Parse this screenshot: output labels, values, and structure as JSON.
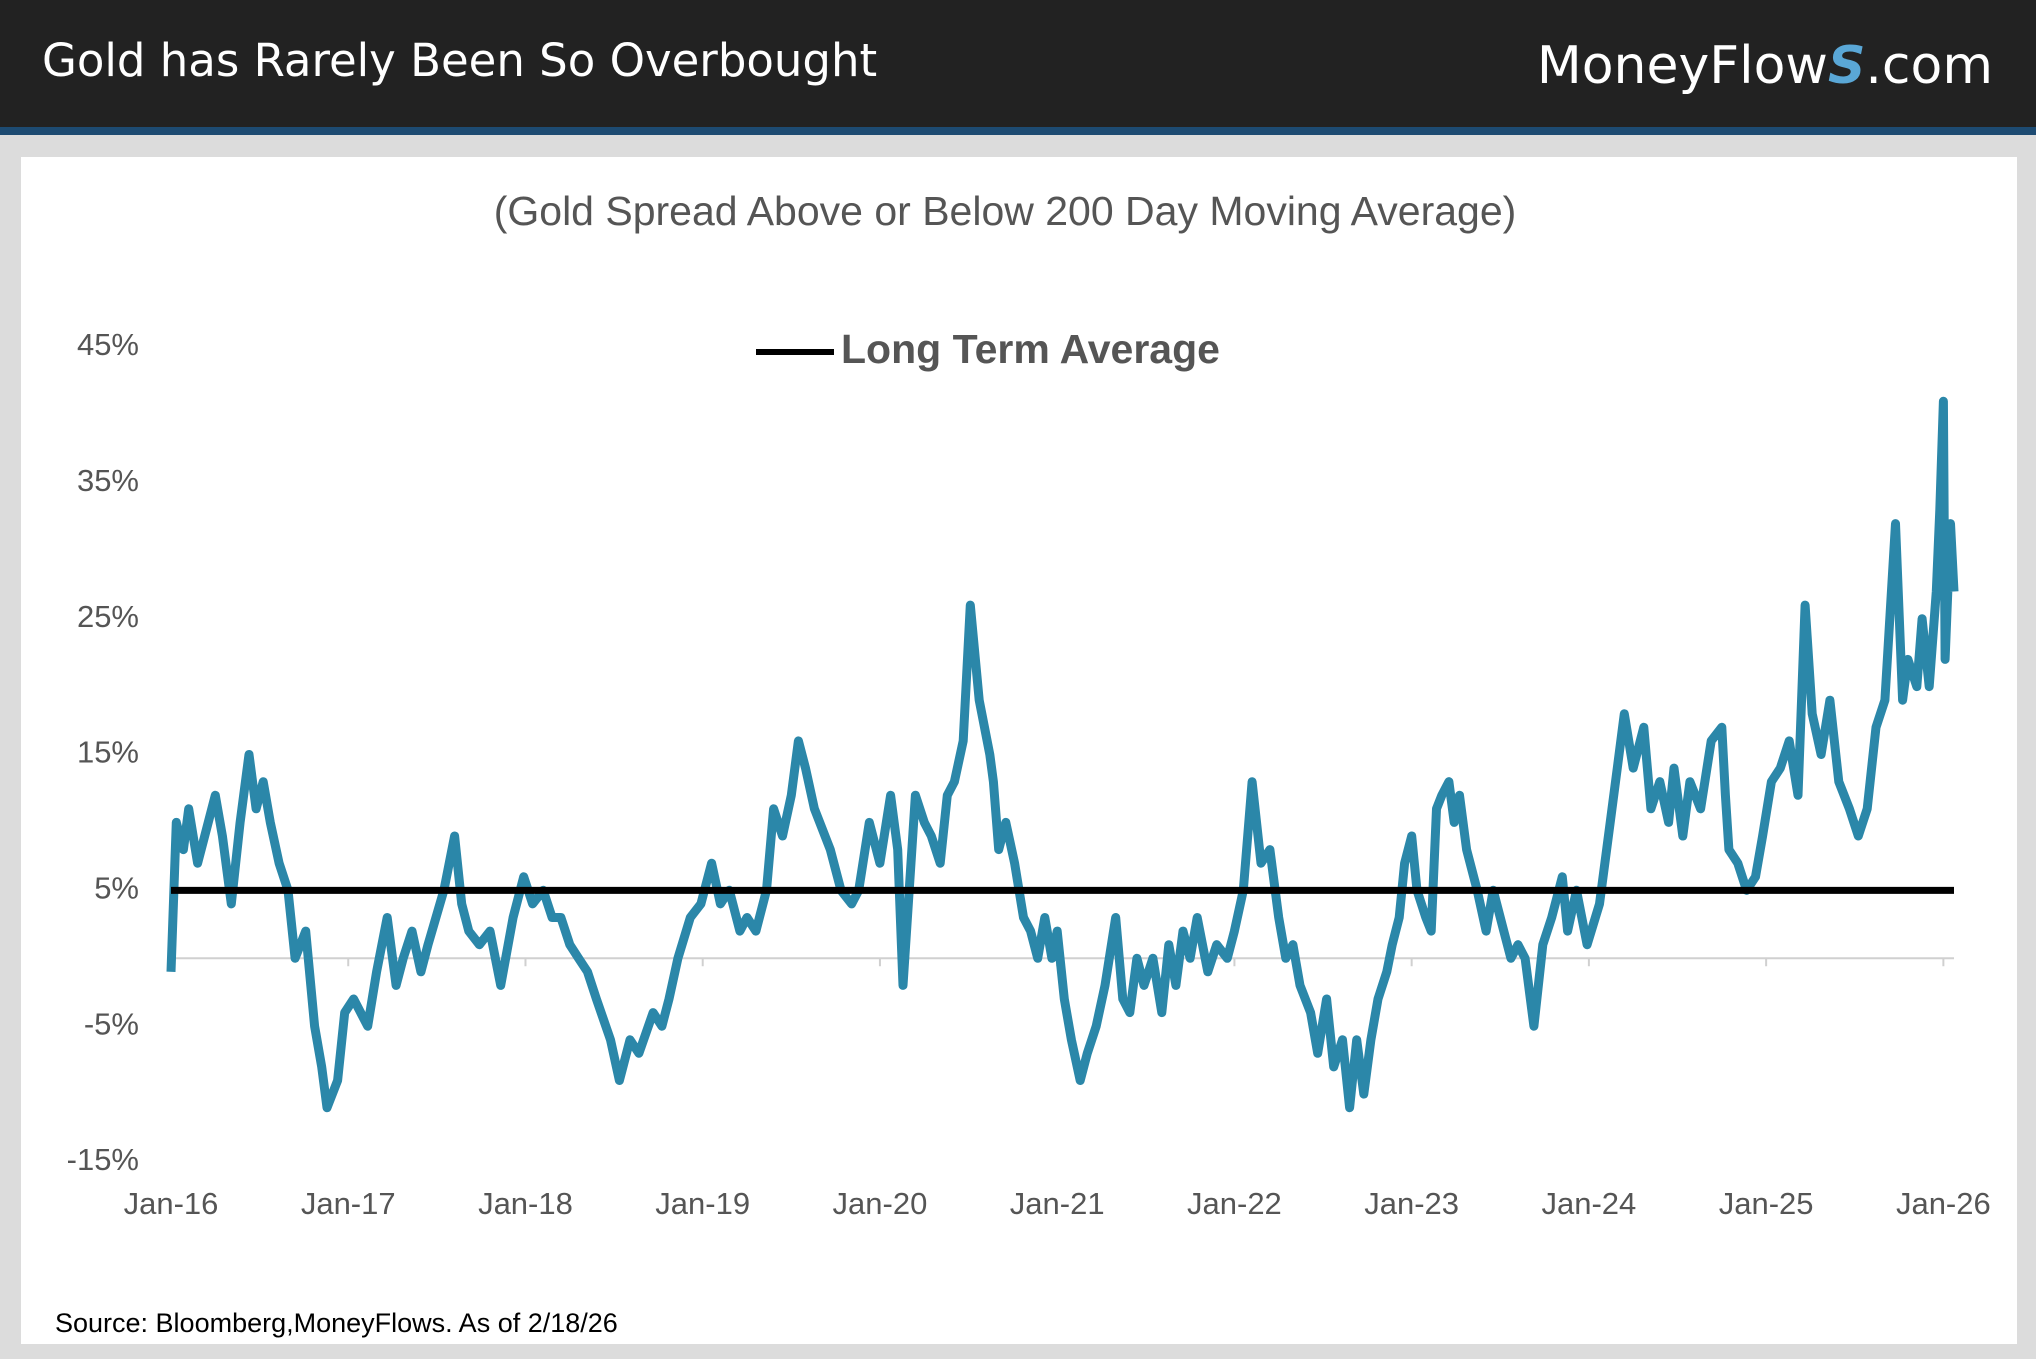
{
  "header": {
    "title": "Gold has Rarely Been So Overbought",
    "logo": {
      "text": "MoneyFlow",
      "mark": "S",
      "suffix": ".com"
    }
  },
  "chart_data": {
    "type": "line",
    "subtitle": "(Gold Spread Above or Below 200 Day Moving Average)",
    "x": [
      2016.0,
      2016.03,
      2016.07,
      2016.1,
      2016.15,
      2016.19,
      2016.25,
      2016.29,
      2016.34,
      2016.39,
      2016.44,
      2016.48,
      2016.52,
      2016.56,
      2016.61,
      2016.66,
      2016.7,
      2016.76,
      2016.81,
      2016.85,
      2016.88,
      2016.94,
      2016.98,
      2017.03,
      2017.11,
      2017.16,
      2017.22,
      2017.27,
      2017.31,
      2017.36,
      2017.41,
      2017.45,
      2017.54,
      2017.6,
      2017.64,
      2017.68,
      2017.74,
      2017.8,
      2017.86,
      2017.93,
      2017.99,
      2018.04,
      2018.1,
      2018.15,
      2018.2,
      2018.25,
      2018.3,
      2018.35,
      2018.4,
      2018.48,
      2018.53,
      2018.59,
      2018.64,
      2018.72,
      2018.77,
      2018.81,
      2018.86,
      2018.93,
      2018.99,
      2019.05,
      2019.1,
      2019.15,
      2019.21,
      2019.25,
      2019.3,
      2019.36,
      2019.4,
      2019.45,
      2019.5,
      2019.54,
      2019.58,
      2019.63,
      2019.72,
      2019.78,
      2019.84,
      2019.88,
      2019.94,
      2020.0,
      2020.06,
      2020.1,
      2020.13,
      2020.2,
      2020.25,
      2020.29,
      2020.34,
      2020.38,
      2020.42,
      2020.47,
      2020.51,
      2020.56,
      2020.62,
      2020.64,
      2020.67,
      2020.71,
      2020.76,
      2020.81,
      2020.85,
      2020.89,
      2020.93,
      2020.97,
      2021.0,
      2021.04,
      2021.08,
      2021.13,
      2021.17,
      2021.22,
      2021.27,
      2021.33,
      2021.37,
      2021.41,
      2021.45,
      2021.49,
      2021.54,
      2021.59,
      2021.63,
      2021.67,
      2021.71,
      2021.75,
      2021.79,
      2021.85,
      2021.9,
      2021.96,
      2022.0,
      2022.05,
      2022.1,
      2022.15,
      2022.2,
      2022.25,
      2022.29,
      2022.33,
      2022.37,
      2022.43,
      2022.47,
      2022.52,
      2022.56,
      2022.61,
      2022.65,
      2022.69,
      2022.73,
      2022.77,
      2022.81,
      2022.86,
      2022.89,
      2022.93,
      2022.96,
      2023.0,
      2023.03,
      2023.08,
      2023.11,
      2023.14,
      2023.17,
      2023.21,
      2023.24,
      2023.27,
      2023.31,
      2023.37,
      2023.42,
      2023.46,
      2023.52,
      2023.56,
      2023.6,
      2023.64,
      2023.69,
      2023.74,
      2023.79,
      2023.85,
      2023.88,
      2023.93,
      2023.99,
      2024.06,
      2024.12,
      2024.16,
      2024.2,
      2024.25,
      2024.31,
      2024.35,
      2024.4,
      2024.45,
      2024.48,
      2024.53,
      2024.57,
      2024.63,
      2024.69,
      2024.75,
      2024.77,
      2024.79,
      2024.84,
      2024.89,
      2024.94,
      2024.98,
      2025.03,
      2025.08,
      2025.13,
      2025.18,
      2025.22,
      2025.26,
      2025.31,
      2025.36,
      2025.41,
      2025.47,
      2025.52,
      2025.57,
      2025.62,
      2025.67,
      2025.73,
      2025.77,
      2025.8,
      2025.85,
      2025.88,
      2025.92,
      2025.96,
      2025.98,
      2026.0,
      2026.01,
      2026.04,
      2026.06
    ],
    "series": [
      {
        "color": "#2b87a9",
        "values": [
          -1,
          10,
          8,
          11,
          7,
          9,
          12,
          9,
          4,
          10,
          15,
          11,
          13,
          10,
          7,
          5,
          0,
          2,
          -5,
          -8,
          -11,
          -9,
          -4,
          -3,
          -5,
          -1,
          3,
          -2,
          0,
          2,
          -1,
          1,
          5,
          9,
          4,
          2,
          1,
          2,
          -2,
          3,
          6,
          4,
          5,
          3,
          3,
          1,
          0,
          -1,
          -3,
          -6,
          -9,
          -6,
          -7,
          -4,
          -5,
          -3,
          0,
          3,
          4,
          7,
          4,
          5,
          2,
          3,
          2,
          5,
          11,
          9,
          12,
          16,
          14,
          11,
          8,
          5,
          4,
          5,
          10,
          7,
          12,
          8,
          -2,
          12,
          10,
          9,
          7,
          12,
          13,
          16,
          26,
          19,
          15,
          13,
          8,
          10,
          7,
          3,
          2,
          0,
          3,
          0,
          2,
          -3,
          -6,
          -9,
          -7,
          -5,
          -2,
          3,
          -3,
          -4,
          0,
          -2,
          0,
          -4,
          1,
          -2,
          2,
          0,
          3,
          -1,
          1,
          0,
          2,
          5,
          13,
          7,
          8,
          3,
          0,
          1,
          -2,
          -4,
          -7,
          -3,
          -8,
          -6,
          -11,
          -6,
          -10,
          -6,
          -3,
          -1,
          1,
          3,
          7,
          9,
          5,
          3,
          2,
          11,
          12,
          13,
          10,
          12,
          8,
          5,
          2,
          5,
          2,
          0,
          1,
          0,
          -5,
          1,
          3,
          6,
          2,
          5,
          1,
          4,
          10,
          14,
          18,
          14,
          17,
          11,
          13,
          10,
          14,
          9,
          13,
          11,
          16,
          17,
          12,
          8,
          7,
          5,
          6,
          9,
          13,
          14,
          16,
          12,
          26,
          18,
          15,
          19,
          13,
          11,
          9,
          11,
          17,
          19,
          32,
          19,
          22,
          20,
          25,
          20,
          27,
          33,
          41,
          22,
          32,
          27
        ]
      }
    ],
    "reference_lines": [
      {
        "name": "Long Term Average",
        "value": 5,
        "color": "#000000"
      }
    ],
    "xlim": [
      2016,
      2026.06
    ],
    "xticks": [
      {
        "value": 2016,
        "label": "Jan-16"
      },
      {
        "value": 2017,
        "label": "Jan-17"
      },
      {
        "value": 2018,
        "label": "Jan-18"
      },
      {
        "value": 2019,
        "label": "Jan-19"
      },
      {
        "value": 2020,
        "label": "Jan-20"
      },
      {
        "value": 2021,
        "label": "Jan-21"
      },
      {
        "value": 2022,
        "label": "Jan-22"
      },
      {
        "value": 2023,
        "label": "Jan-23"
      },
      {
        "value": 2024,
        "label": "Jan-24"
      },
      {
        "value": 2025,
        "label": "Jan-25"
      },
      {
        "value": 2026,
        "label": "Jan-26"
      }
    ],
    "ylim": [
      -15,
      45
    ],
    "yticks": [
      {
        "value": -15,
        "label": "-15%"
      },
      {
        "value": -5,
        "label": "-5%"
      },
      {
        "value": 5,
        "label": "5%"
      },
      {
        "value": 15,
        "label": "15%"
      },
      {
        "value": 25,
        "label": "25%"
      },
      {
        "value": 35,
        "label": "35%"
      },
      {
        "value": 45,
        "label": "45%"
      }
    ]
  },
  "source": "Source: Bloomberg,MoneyFlows. As of 2/18/26"
}
